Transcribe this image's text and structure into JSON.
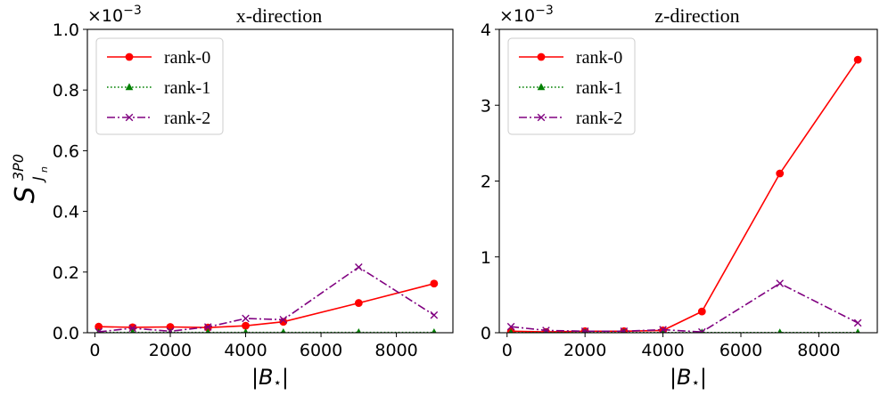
{
  "ylabel": "S",
  "ylabel_sup": "3P0",
  "ylabel_sub": "J",
  "ylabel_subsub": "n",
  "chart_data": [
    {
      "type": "line",
      "title": "x-direction",
      "xlabel": "|B",
      "xlabel_star": "⋆",
      "xlabel_end": "|",
      "ylabel": "S^{3P0}_{J_n}",
      "multiplier_base": "×10",
      "multiplier_exp": "−3",
      "xlim": [
        -200,
        9500
      ],
      "ylim": [
        0,
        1.0
      ],
      "xticks": [
        0,
        2000,
        4000,
        6000,
        8000
      ],
      "yticks": [
        0.0,
        0.2,
        0.4,
        0.6,
        0.8,
        1.0
      ],
      "ytick_labels": [
        "0.0",
        "0.2",
        "0.4",
        "0.6",
        "0.8",
        "1.0"
      ],
      "legend_position": "top-left",
      "series": [
        {
          "name": "rank-0",
          "x": [
            100,
            1000,
            2000,
            3000,
            4000,
            5000,
            7000,
            9000
          ],
          "y": [
            0.02,
            0.018,
            0.019,
            0.017,
            0.023,
            0.036,
            0.098,
            0.162
          ],
          "color": "#ff0000",
          "style": "solid",
          "marker": "circle"
        },
        {
          "name": "rank-1",
          "x": [
            100,
            1000,
            2000,
            3000,
            4000,
            5000,
            7000,
            9000
          ],
          "y": [
            0.001,
            0.001,
            0.001,
            0.001,
            0.001,
            0.001,
            0.001,
            0.001
          ],
          "color": "#008000",
          "style": "dotted",
          "marker": "triangle"
        },
        {
          "name": "rank-2",
          "x": [
            100,
            1000,
            2000,
            3000,
            4000,
            5000,
            7000,
            9000
          ],
          "y": [
            0.003,
            0.015,
            0.005,
            0.019,
            0.047,
            0.043,
            0.216,
            0.058
          ],
          "color": "#800080",
          "style": "dashdot",
          "marker": "x"
        }
      ]
    },
    {
      "type": "line",
      "title": "z-direction",
      "xlabel": "|B",
      "xlabel_star": "⋆",
      "xlabel_end": "|",
      "multiplier_base": "×10",
      "multiplier_exp": "−3",
      "xlim": [
        -200,
        9500
      ],
      "ylim": [
        0,
        4
      ],
      "xticks": [
        0,
        2000,
        4000,
        6000,
        8000
      ],
      "yticks": [
        0,
        1,
        2,
        3,
        4
      ],
      "ytick_labels": [
        "0",
        "1",
        "2",
        "3",
        "4"
      ],
      "legend_position": "top-left",
      "series": [
        {
          "name": "rank-0",
          "x": [
            100,
            1000,
            2000,
            3000,
            4000,
            5000,
            7000,
            9000
          ],
          "y": [
            0.02,
            0.01,
            0.02,
            0.02,
            0.03,
            0.28,
            2.1,
            3.6
          ],
          "color": "#ff0000",
          "style": "solid",
          "marker": "circle"
        },
        {
          "name": "rank-1",
          "x": [
            100,
            1000,
            2000,
            3000,
            4000,
            5000,
            7000,
            9000
          ],
          "y": [
            0.002,
            0.002,
            0.002,
            0.002,
            0.002,
            0.002,
            0.002,
            0.002
          ],
          "color": "#008000",
          "style": "dotted",
          "marker": "triangle"
        },
        {
          "name": "rank-2",
          "x": [
            100,
            1000,
            2000,
            3000,
            4000,
            5000,
            7000,
            9000
          ],
          "y": [
            0.08,
            0.03,
            0.02,
            0.02,
            0.04,
            0.01,
            0.65,
            0.13
          ],
          "color": "#800080",
          "style": "dashdot",
          "marker": "x"
        }
      ]
    }
  ]
}
